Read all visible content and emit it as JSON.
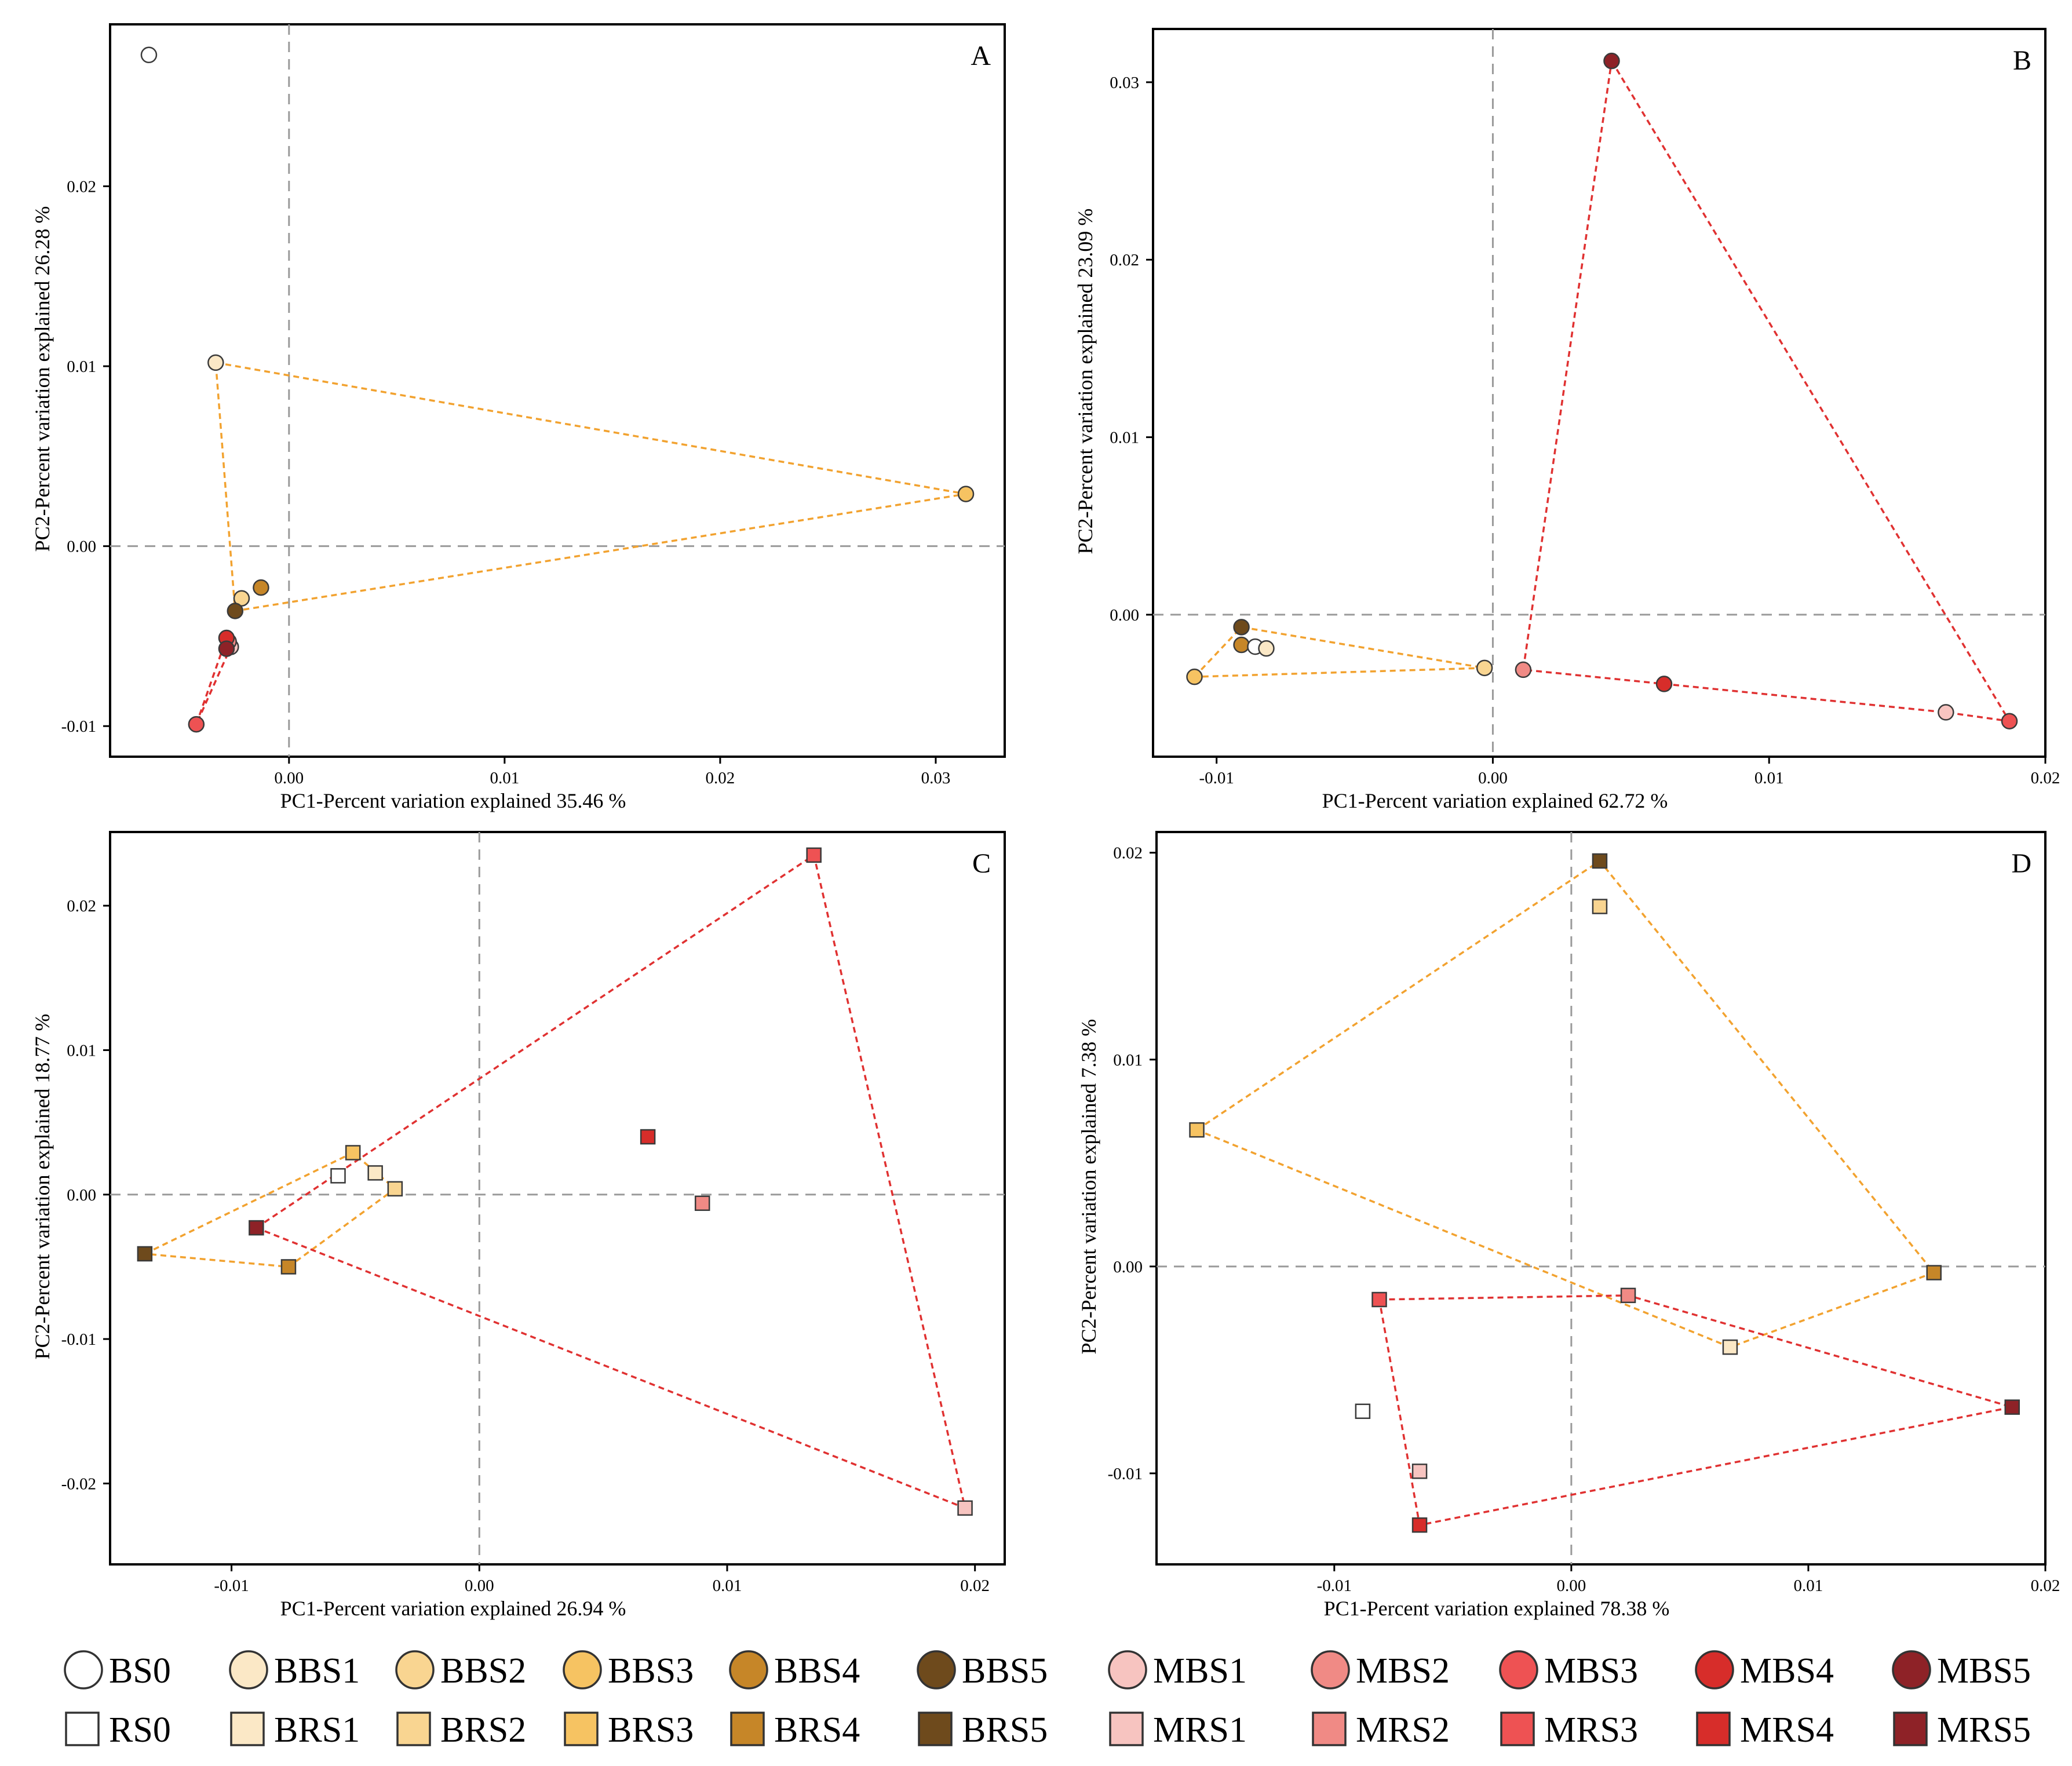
{
  "colors": {
    "BS0": "#ffffff",
    "BBS1": "#fbe8c6",
    "BBS2": "#f9d591",
    "BBS3": "#f6c362",
    "BBS4": "#c68628",
    "BBS5": "#6e4a1c",
    "MBS1": "#f7c4c0",
    "MBS2": "#f08a85",
    "MBS3": "#ee5253",
    "MBS4": "#d72d2a",
    "MBS5": "#8e2227",
    "RS0": "#ffffff",
    "BRS1": "#fbe8c6",
    "BRS2": "#f9d591",
    "BRS3": "#f6c362",
    "BRS4": "#c68628",
    "BRS5": "#6e4a1c",
    "MRS1": "#f7c4c0",
    "MRS2": "#f08a85",
    "MRS3": "#ee5253",
    "MRS4": "#d72d2a",
    "MRS5": "#8e2227",
    "hull_B": "#f2a22f",
    "hull_M": "#e03131"
  },
  "legend": {
    "row1": [
      "BS0",
      "BBS1",
      "BBS2",
      "BBS3",
      "BBS4",
      "BBS5",
      "MBS1",
      "MBS2",
      "MBS3",
      "MBS4",
      "MBS5"
    ],
    "row2": [
      "RS0",
      "BRS1",
      "BRS2",
      "BRS3",
      "BRS4",
      "BRS5",
      "MRS1",
      "MRS2",
      "MRS3",
      "MRS4",
      "MRS5"
    ]
  },
  "chart_data": [
    {
      "panel": "A",
      "type": "scatter",
      "marker": "circle",
      "xlabel": "PC1-Percent variation explained 35.46 %",
      "ylabel": "PC2-Percent variation explained 26.28 %",
      "xlim": [
        -0.0083,
        0.0332
      ],
      "ylim": [
        -0.0117,
        0.029
      ],
      "xticks": [
        0.0,
        0.01,
        0.02,
        0.03
      ],
      "xticklabels": [
        "0.00",
        "0.01",
        "0.02",
        "0.03"
      ],
      "yticks": [
        -0.01,
        0.0,
        0.01,
        0.02
      ],
      "yticklabels": [
        "-0.01",
        "0.00",
        "0.01",
        "0.02"
      ],
      "points": [
        {
          "group": "BS0",
          "x": -0.0065,
          "y": 0.0273
        },
        {
          "group": "BBS1",
          "x": -0.0034,
          "y": 0.0102
        },
        {
          "group": "BBS3",
          "x": 0.0314,
          "y": 0.0029
        },
        {
          "group": "BBS2",
          "x": -0.0022,
          "y": -0.0029
        },
        {
          "group": "BBS4",
          "x": -0.0013,
          "y": -0.0023
        },
        {
          "group": "BBS5",
          "x": -0.0025,
          "y": -0.0036
        },
        {
          "group": "MBS1",
          "x": -0.0027,
          "y": -0.0056
        },
        {
          "group": "MBS2",
          "x": -0.0028,
          "y": -0.0053
        },
        {
          "group": "MBS4",
          "x": -0.0029,
          "y": -0.0051
        },
        {
          "group": "MBS5",
          "x": -0.0029,
          "y": -0.0057
        },
        {
          "group": "MBS3",
          "x": -0.0043,
          "y": -0.0099
        }
      ],
      "hull_B": [
        [
          -0.0034,
          0.0102
        ],
        [
          0.0314,
          0.0029
        ],
        [
          -0.0025,
          -0.0036
        ]
      ],
      "hull_M": [
        [
          -0.0043,
          -0.0099
        ],
        [
          -0.0029,
          -0.0051
        ],
        [
          -0.0027,
          -0.0056
        ]
      ]
    },
    {
      "panel": "B",
      "type": "scatter",
      "marker": "circle",
      "xlabel": "PC1-Percent variation explained 62.72 %",
      "ylabel": "PC2-Percent variation explained 23.09 %",
      "xlim": [
        -0.0123,
        0.02
      ],
      "ylim": [
        -0.008,
        0.033
      ],
      "xticks": [
        -0.01,
        0.0,
        0.01,
        0.02
      ],
      "xticklabels": [
        "-0.01",
        "0.00",
        "0.01",
        "0.02"
      ],
      "yticks": [
        0.0,
        0.01,
        0.02,
        0.03
      ],
      "yticklabels": [
        "0.00",
        "0.01",
        "0.02",
        "0.03"
      ],
      "points": [
        {
          "group": "MBS5",
          "x": 0.0043,
          "y": 0.0312
        },
        {
          "group": "BBS5",
          "x": -0.0091,
          "y": -0.0007
        },
        {
          "group": "BBS4",
          "x": -0.0091,
          "y": -0.0017
        },
        {
          "group": "BS0",
          "x": -0.0086,
          "y": -0.0018
        },
        {
          "group": "BBS1",
          "x": -0.0082,
          "y": -0.0019
        },
        {
          "group": "BBS3",
          "x": -0.0108,
          "y": -0.0035
        },
        {
          "group": "BBS2",
          "x": -0.0003,
          "y": -0.003
        },
        {
          "group": "MBS2",
          "x": 0.0011,
          "y": -0.0031
        },
        {
          "group": "MBS4",
          "x": 0.0062,
          "y": -0.0039
        },
        {
          "group": "MBS1",
          "x": 0.0164,
          "y": -0.0055
        },
        {
          "group": "MBS3",
          "x": 0.0187,
          "y": -0.006
        }
      ],
      "hull_B": [
        [
          -0.0108,
          -0.0035
        ],
        [
          -0.0091,
          -0.0007
        ],
        [
          -0.0003,
          -0.003
        ]
      ],
      "hull_M": [
        [
          0.0043,
          0.0312
        ],
        [
          0.0187,
          -0.006
        ],
        [
          0.0164,
          -0.0055
        ],
        [
          0.0062,
          -0.0039
        ],
        [
          0.0011,
          -0.0031
        ]
      ]
    },
    {
      "panel": "C",
      "type": "scatter",
      "marker": "square",
      "xlabel": "PC1-Percent variation explained 26.94 %",
      "ylabel": "PC2-Percent variation explained 18.77 %",
      "xlim": [
        -0.0149,
        0.0212
      ],
      "ylim": [
        -0.0256,
        0.0251
      ],
      "xticks": [
        -0.01,
        0.0,
        0.01,
        0.02
      ],
      "xticklabels": [
        "-0.01",
        "0.00",
        "0.01",
        "0.02"
      ],
      "yticks": [
        -0.02,
        -0.01,
        0.0,
        0.01,
        0.02
      ],
      "yticklabels": [
        "-0.02",
        "-0.01",
        "0.00",
        "0.01",
        "0.02"
      ],
      "points": [
        {
          "group": "MRS3",
          "x": 0.0135,
          "y": 0.0235
        },
        {
          "group": "MRS4",
          "x": 0.0068,
          "y": 0.004
        },
        {
          "group": "MRS2",
          "x": 0.009,
          "y": -0.0006
        },
        {
          "group": "BRS3",
          "x": -0.0051,
          "y": 0.0029
        },
        {
          "group": "RS0",
          "x": -0.0057,
          "y": 0.0013
        },
        {
          "group": "BRS1",
          "x": -0.0042,
          "y": 0.0015
        },
        {
          "group": "BRS2",
          "x": -0.0034,
          "y": 0.0004
        },
        {
          "group": "BRS5",
          "x": -0.0135,
          "y": -0.0041
        },
        {
          "group": "MRS5",
          "x": -0.009,
          "y": -0.0023
        },
        {
          "group": "BRS4",
          "x": -0.0077,
          "y": -0.005
        },
        {
          "group": "MRS1",
          "x": 0.0196,
          "y": -0.0217
        }
      ],
      "hull_B": [
        [
          -0.0135,
          -0.0041
        ],
        [
          -0.0051,
          0.0029
        ],
        [
          -0.0034,
          0.0004
        ],
        [
          -0.0077,
          -0.005
        ]
      ],
      "hull_M": [
        [
          -0.009,
          -0.0023
        ],
        [
          0.0135,
          0.0235
        ],
        [
          0.0196,
          -0.0217
        ]
      ]
    },
    {
      "panel": "D",
      "type": "scatter",
      "marker": "square",
      "xlabel": "PC1-Percent variation explained 78.38 %",
      "ylabel": "PC2-Percent variation explained 7.38 %",
      "xlim": [
        -0.0175,
        0.02
      ],
      "ylim": [
        -0.0144,
        0.021
      ],
      "xticks": [
        -0.01,
        0.0,
        0.01,
        0.02
      ],
      "xticklabels": [
        "-0.01",
        "0.00",
        "0.01",
        "0.02"
      ],
      "yticks": [
        -0.01,
        0.0,
        0.01,
        0.02
      ],
      "yticklabels": [
        "-0.01",
        "0.00",
        "0.01",
        "0.02"
      ],
      "points": [
        {
          "group": "BRS5",
          "x": 0.0012,
          "y": 0.0196
        },
        {
          "group": "BRS2",
          "x": 0.0012,
          "y": 0.0174
        },
        {
          "group": "BRS3",
          "x": -0.0158,
          "y": 0.0066
        },
        {
          "group": "BRS4",
          "x": 0.0153,
          "y": -0.0003
        },
        {
          "group": "MRS2",
          "x": 0.0024,
          "y": -0.0014
        },
        {
          "group": "MRS3",
          "x": -0.0081,
          "y": -0.0016
        },
        {
          "group": "BRS1",
          "x": 0.0067,
          "y": -0.0039
        },
        {
          "group": "MRS5",
          "x": 0.0186,
          "y": -0.0068
        },
        {
          "group": "RS0",
          "x": -0.0088,
          "y": -0.007
        },
        {
          "group": "MRS1",
          "x": -0.0064,
          "y": -0.0099
        },
        {
          "group": "MRS4",
          "x": -0.0064,
          "y": -0.0125
        }
      ],
      "hull_B": [
        [
          -0.0158,
          0.0066
        ],
        [
          0.0012,
          0.0196
        ],
        [
          0.0153,
          -0.0003
        ],
        [
          0.0067,
          -0.0039
        ]
      ],
      "hull_M": [
        [
          -0.0081,
          -0.0016
        ],
        [
          0.0024,
          -0.0014
        ],
        [
          0.0186,
          -0.0068
        ],
        [
          -0.0064,
          -0.0125
        ]
      ]
    }
  ]
}
